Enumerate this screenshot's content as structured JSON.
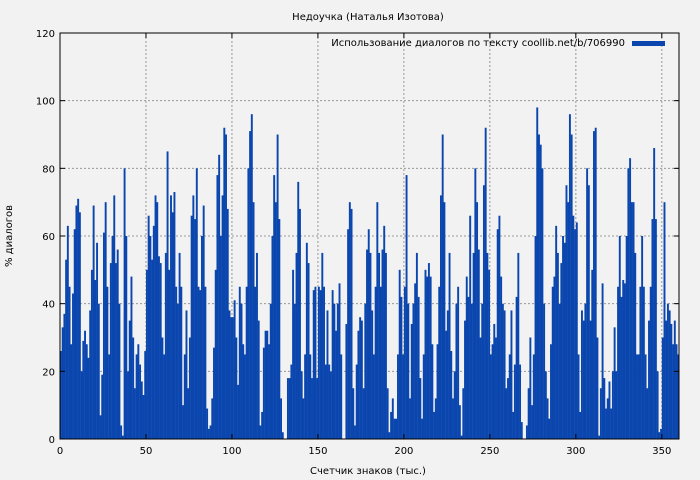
{
  "chart_data": {
    "type": "bar",
    "title": "Недоучка (Наталья Изотова)",
    "xlabel": "Счетчик знаков (тыс.)",
    "ylabel": "% диалогов",
    "xlim": [
      0,
      360
    ],
    "ylim": [
      0,
      120
    ],
    "xticks": [
      0,
      50,
      100,
      150,
      200,
      250,
      300,
      350
    ],
    "yticks": [
      0,
      20,
      40,
      60,
      80,
      100,
      120
    ],
    "grid": true,
    "legend_position": "top-right",
    "bar_color": "#0a46ae",
    "series": [
      {
        "name": "Использование диалогов по тексту coollib.net/b/706990",
        "x_start": 0,
        "x_step": 1,
        "values": [
          26,
          33,
          37,
          53,
          63,
          45,
          28,
          43,
          62,
          69,
          71,
          67,
          20,
          29,
          32,
          28,
          24,
          38,
          50,
          69,
          47,
          58,
          40,
          7,
          19,
          61,
          70,
          45,
          25,
          52,
          60,
          72,
          52,
          56,
          40,
          4,
          1,
          80,
          60,
          20,
          35,
          48,
          30,
          15,
          25,
          28,
          22,
          17,
          13,
          26,
          50,
          66,
          60,
          53,
          63,
          72,
          70,
          54,
          52,
          30,
          25,
          55,
          85,
          50,
          72,
          67,
          73,
          45,
          40,
          55,
          45,
          10,
          25,
          38,
          15,
          30,
          66,
          72,
          65,
          80,
          45,
          44,
          60,
          69,
          45,
          9,
          3,
          4,
          12,
          27,
          50,
          78,
          84,
          60,
          72,
          92,
          90,
          68,
          38,
          36,
          36,
          41,
          30,
          16,
          45,
          40,
          28,
          25,
          45,
          80,
          91,
          96,
          70,
          45,
          55,
          35,
          4,
          8,
          27,
          32,
          32,
          28,
          40,
          60,
          78,
          70,
          90,
          65,
          12,
          2,
          0,
          0,
          18,
          18,
          22,
          50,
          40,
          55,
          76,
          68,
          20,
          12,
          25,
          58,
          52,
          25,
          18,
          44,
          45,
          18,
          45,
          44,
          55,
          45,
          22,
          38,
          22,
          20,
          44,
          40,
          32,
          40,
          46,
          25,
          0,
          0,
          34,
          62,
          70,
          68,
          15,
          4,
          22,
          32,
          36,
          35,
          15,
          40,
          56,
          62,
          55,
          38,
          25,
          45,
          70,
          55,
          45,
          56,
          63,
          55,
          15,
          2,
          8,
          12,
          6,
          6,
          25,
          50,
          42,
          25,
          45,
          78,
          40,
          12,
          34,
          40,
          46,
          55,
          42,
          18,
          6,
          25,
          50,
          48,
          52,
          48,
          28,
          8,
          12,
          28,
          45,
          72,
          90,
          70,
          32,
          38,
          55,
          26,
          12,
          20,
          40,
          45,
          10,
          1,
          15,
          35,
          48,
          42,
          66,
          40,
          55,
          80,
          70,
          56,
          30,
          40,
          75,
          92,
          55,
          50,
          25,
          28,
          34,
          30,
          62,
          66,
          48,
          40,
          38,
          15,
          18,
          25,
          38,
          8,
          22,
          42,
          55,
          22,
          5,
          0,
          0,
          4,
          15,
          30,
          10,
          25,
          60,
          98,
          90,
          87,
          80,
          40,
          20,
          12,
          6,
          28,
          45,
          48,
          63,
          55,
          40,
          52,
          60,
          58,
          75,
          70,
          96,
          90,
          66,
          62,
          64,
          25,
          8,
          38,
          35,
          40,
          80,
          75,
          35,
          50,
          91,
          92,
          30,
          1,
          15,
          46,
          18,
          9,
          12,
          17,
          9,
          20,
          33,
          20,
          45,
          60,
          42,
          47,
          46,
          60,
          80,
          83,
          70,
          70,
          55,
          25,
          25,
          45,
          60,
          45,
          25,
          15,
          35,
          45,
          65,
          86,
          65,
          20,
          2,
          3,
          30,
          70,
          35,
          40,
          38,
          34,
          28,
          35,
          28,
          25
        ]
      }
    ]
  }
}
